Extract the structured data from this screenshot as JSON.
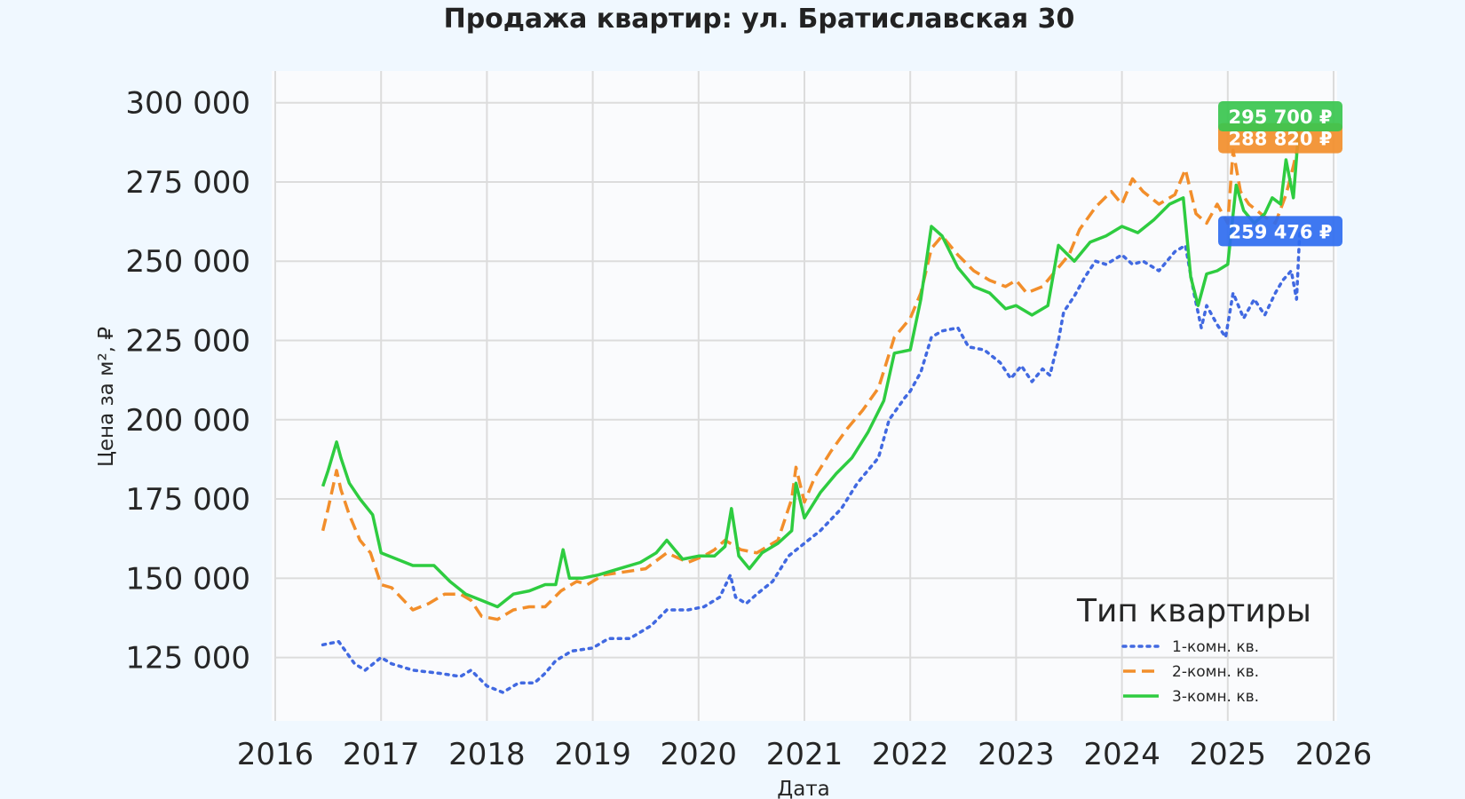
{
  "chart_data": {
    "type": "line",
    "title": "Продажа квартир: ул. Братиславская 30",
    "xlabel": "Дата",
    "ylabel": "Цена за м², ₽",
    "xlim": [
      2016,
      2026
    ],
    "ylim": [
      105000,
      310000
    ],
    "x_ticks": [
      "2016",
      "2017",
      "2018",
      "2019",
      "2020",
      "2021",
      "2022",
      "2023",
      "2024",
      "2025",
      "2026"
    ],
    "y_ticks": [
      "125 000",
      "150 000",
      "175 000",
      "200 000",
      "225 000",
      "250 000",
      "275 000",
      "300 000"
    ],
    "grid": true,
    "legend": {
      "title": "Тип квартиры",
      "placement": "lower-right"
    },
    "series": [
      {
        "name": "1-комн. кв.",
        "color": "#4169e1",
        "style": "dotted",
        "points": [
          [
            2016.45,
            129000
          ],
          [
            2016.6,
            130000
          ],
          [
            2016.75,
            123000
          ],
          [
            2016.85,
            121000
          ],
          [
            2017.0,
            125000
          ],
          [
            2017.1,
            123000
          ],
          [
            2017.3,
            121000
          ],
          [
            2017.55,
            120000
          ],
          [
            2017.75,
            119000
          ],
          [
            2017.85,
            121000
          ],
          [
            2018.0,
            116000
          ],
          [
            2018.15,
            114000
          ],
          [
            2018.3,
            117000
          ],
          [
            2018.45,
            117000
          ],
          [
            2018.55,
            120000
          ],
          [
            2018.65,
            124000
          ],
          [
            2018.8,
            127000
          ],
          [
            2019.0,
            128000
          ],
          [
            2019.15,
            131000
          ],
          [
            2019.35,
            131000
          ],
          [
            2019.55,
            135000
          ],
          [
            2019.7,
            140000
          ],
          [
            2019.9,
            140000
          ],
          [
            2020.05,
            141000
          ],
          [
            2020.2,
            144000
          ],
          [
            2020.3,
            151000
          ],
          [
            2020.35,
            144000
          ],
          [
            2020.45,
            142000
          ],
          [
            2020.55,
            145000
          ],
          [
            2020.7,
            149000
          ],
          [
            2020.85,
            157000
          ],
          [
            2021.0,
            161000
          ],
          [
            2021.15,
            165000
          ],
          [
            2021.35,
            172000
          ],
          [
            2021.5,
            180000
          ],
          [
            2021.7,
            188000
          ],
          [
            2021.8,
            200000
          ],
          [
            2021.95,
            207000
          ],
          [
            2022.0,
            209000
          ],
          [
            2022.1,
            215000
          ],
          [
            2022.2,
            226000
          ],
          [
            2022.3,
            228000
          ],
          [
            2022.45,
            229000
          ],
          [
            2022.55,
            223000
          ],
          [
            2022.7,
            222000
          ],
          [
            2022.85,
            218000
          ],
          [
            2022.95,
            213000
          ],
          [
            2023.05,
            217000
          ],
          [
            2023.15,
            212000
          ],
          [
            2023.25,
            216000
          ],
          [
            2023.32,
            214000
          ],
          [
            2023.4,
            225000
          ],
          [
            2023.45,
            234000
          ],
          [
            2023.55,
            239000
          ],
          [
            2023.65,
            245000
          ],
          [
            2023.75,
            250000
          ],
          [
            2023.85,
            249000
          ],
          [
            2024.0,
            252000
          ],
          [
            2024.1,
            249000
          ],
          [
            2024.2,
            250000
          ],
          [
            2024.35,
            247000
          ],
          [
            2024.5,
            253000
          ],
          [
            2024.6,
            255000
          ],
          [
            2024.68,
            240000
          ],
          [
            2024.75,
            229000
          ],
          [
            2024.8,
            236000
          ],
          [
            2024.9,
            230000
          ],
          [
            2024.98,
            226000
          ],
          [
            2025.05,
            240000
          ],
          [
            2025.15,
            232000
          ],
          [
            2025.25,
            238000
          ],
          [
            2025.35,
            233000
          ],
          [
            2025.45,
            240000
          ],
          [
            2025.52,
            244000
          ],
          [
            2025.6,
            247000
          ],
          [
            2025.65,
            238000
          ],
          [
            2025.68,
            259476
          ]
        ]
      },
      {
        "name": "2-комн. кв.",
        "color": "#f28e2b",
        "style": "dashed",
        "points": [
          [
            2016.45,
            165000
          ],
          [
            2016.5,
            172000
          ],
          [
            2016.58,
            184000
          ],
          [
            2016.62,
            178000
          ],
          [
            2016.7,
            170000
          ],
          [
            2016.8,
            162000
          ],
          [
            2016.9,
            158000
          ],
          [
            2017.0,
            148000
          ],
          [
            2017.1,
            147000
          ],
          [
            2017.3,
            140000
          ],
          [
            2017.45,
            142000
          ],
          [
            2017.6,
            145000
          ],
          [
            2017.75,
            145000
          ],
          [
            2017.85,
            143000
          ],
          [
            2017.95,
            138000
          ],
          [
            2018.1,
            137000
          ],
          [
            2018.25,
            140000
          ],
          [
            2018.4,
            141000
          ],
          [
            2018.55,
            141000
          ],
          [
            2018.7,
            146000
          ],
          [
            2018.85,
            149000
          ],
          [
            2018.95,
            148000
          ],
          [
            2019.1,
            151000
          ],
          [
            2019.3,
            152000
          ],
          [
            2019.5,
            153000
          ],
          [
            2019.7,
            158000
          ],
          [
            2019.9,
            155000
          ],
          [
            2020.05,
            157000
          ],
          [
            2020.15,
            159000
          ],
          [
            2020.25,
            162000
          ],
          [
            2020.4,
            159000
          ],
          [
            2020.55,
            158000
          ],
          [
            2020.75,
            162000
          ],
          [
            2020.88,
            175000
          ],
          [
            2020.92,
            185000
          ],
          [
            2021.0,
            174000
          ],
          [
            2021.1,
            182000
          ],
          [
            2021.25,
            190000
          ],
          [
            2021.4,
            197000
          ],
          [
            2021.55,
            203000
          ],
          [
            2021.7,
            210000
          ],
          [
            2021.85,
            226000
          ],
          [
            2022.0,
            232000
          ],
          [
            2022.1,
            240000
          ],
          [
            2022.2,
            254000
          ],
          [
            2022.3,
            258000
          ],
          [
            2022.45,
            252000
          ],
          [
            2022.6,
            247000
          ],
          [
            2022.75,
            244000
          ],
          [
            2022.9,
            242000
          ],
          [
            2023.0,
            244000
          ],
          [
            2023.1,
            240000
          ],
          [
            2023.25,
            242000
          ],
          [
            2023.35,
            246000
          ],
          [
            2023.5,
            252000
          ],
          [
            2023.6,
            260000
          ],
          [
            2023.75,
            267000
          ],
          [
            2023.9,
            272000
          ],
          [
            2024.0,
            268000
          ],
          [
            2024.1,
            276000
          ],
          [
            2024.2,
            272000
          ],
          [
            2024.35,
            268000
          ],
          [
            2024.5,
            271000
          ],
          [
            2024.6,
            279000
          ],
          [
            2024.7,
            265000
          ],
          [
            2024.8,
            262000
          ],
          [
            2024.9,
            268000
          ],
          [
            2025.0,
            262000
          ],
          [
            2025.05,
            285000
          ],
          [
            2025.12,
            272000
          ],
          [
            2025.2,
            268000
          ],
          [
            2025.35,
            264000
          ],
          [
            2025.45,
            262000
          ],
          [
            2025.55,
            271000
          ],
          [
            2025.62,
            280000
          ],
          [
            2025.68,
            288820
          ]
        ]
      },
      {
        "name": "3-комн. кв.",
        "color": "#2ecc40",
        "style": "solid",
        "points": [
          [
            2016.45,
            179000
          ],
          [
            2016.5,
            184000
          ],
          [
            2016.58,
            193000
          ],
          [
            2016.62,
            188000
          ],
          [
            2016.7,
            180000
          ],
          [
            2016.8,
            175000
          ],
          [
            2016.92,
            170000
          ],
          [
            2017.0,
            158000
          ],
          [
            2017.15,
            156000
          ],
          [
            2017.3,
            154000
          ],
          [
            2017.5,
            154000
          ],
          [
            2017.65,
            149000
          ],
          [
            2017.8,
            145000
          ],
          [
            2017.95,
            143000
          ],
          [
            2018.1,
            141000
          ],
          [
            2018.25,
            145000
          ],
          [
            2018.4,
            146000
          ],
          [
            2018.55,
            148000
          ],
          [
            2018.65,
            148000
          ],
          [
            2018.72,
            159000
          ],
          [
            2018.78,
            150000
          ],
          [
            2018.9,
            150000
          ],
          [
            2019.05,
            151000
          ],
          [
            2019.25,
            153000
          ],
          [
            2019.45,
            155000
          ],
          [
            2019.6,
            158000
          ],
          [
            2019.7,
            162000
          ],
          [
            2019.85,
            156000
          ],
          [
            2020.0,
            157000
          ],
          [
            2020.15,
            157000
          ],
          [
            2020.25,
            160000
          ],
          [
            2020.31,
            172000
          ],
          [
            2020.38,
            157000
          ],
          [
            2020.48,
            153000
          ],
          [
            2020.6,
            158000
          ],
          [
            2020.75,
            161000
          ],
          [
            2020.88,
            165000
          ],
          [
            2020.92,
            180000
          ],
          [
            2021.0,
            169000
          ],
          [
            2021.15,
            177000
          ],
          [
            2021.3,
            183000
          ],
          [
            2021.45,
            188000
          ],
          [
            2021.6,
            196000
          ],
          [
            2021.75,
            206000
          ],
          [
            2021.85,
            221000
          ],
          [
            2022.0,
            222000
          ],
          [
            2022.1,
            238000
          ],
          [
            2022.2,
            261000
          ],
          [
            2022.3,
            258000
          ],
          [
            2022.45,
            248000
          ],
          [
            2022.6,
            242000
          ],
          [
            2022.75,
            240000
          ],
          [
            2022.9,
            235000
          ],
          [
            2023.0,
            236000
          ],
          [
            2023.15,
            233000
          ],
          [
            2023.3,
            236000
          ],
          [
            2023.4,
            255000
          ],
          [
            2023.55,
            250000
          ],
          [
            2023.7,
            256000
          ],
          [
            2023.85,
            258000
          ],
          [
            2024.0,
            261000
          ],
          [
            2024.15,
            259000
          ],
          [
            2024.3,
            263000
          ],
          [
            2024.45,
            268000
          ],
          [
            2024.58,
            270000
          ],
          [
            2024.65,
            245000
          ],
          [
            2024.72,
            236000
          ],
          [
            2024.8,
            246000
          ],
          [
            2024.9,
            247000
          ],
          [
            2025.0,
            249000
          ],
          [
            2025.08,
            274000
          ],
          [
            2025.15,
            266000
          ],
          [
            2025.25,
            262000
          ],
          [
            2025.35,
            265000
          ],
          [
            2025.42,
            270000
          ],
          [
            2025.5,
            268000
          ],
          [
            2025.55,
            282000
          ],
          [
            2025.62,
            270000
          ],
          [
            2025.68,
            295700
          ]
        ]
      }
    ],
    "end_labels": [
      {
        "series": "3-комн. кв.",
        "text": "295 700 ₽",
        "color": "#39c64f"
      },
      {
        "series": "2-комн. кв.",
        "text": "288 820 ₽",
        "color": "#f28e2b"
      },
      {
        "series": "1-комн. кв.",
        "text": "259 476 ₽",
        "color": "#2f6df0"
      }
    ]
  }
}
